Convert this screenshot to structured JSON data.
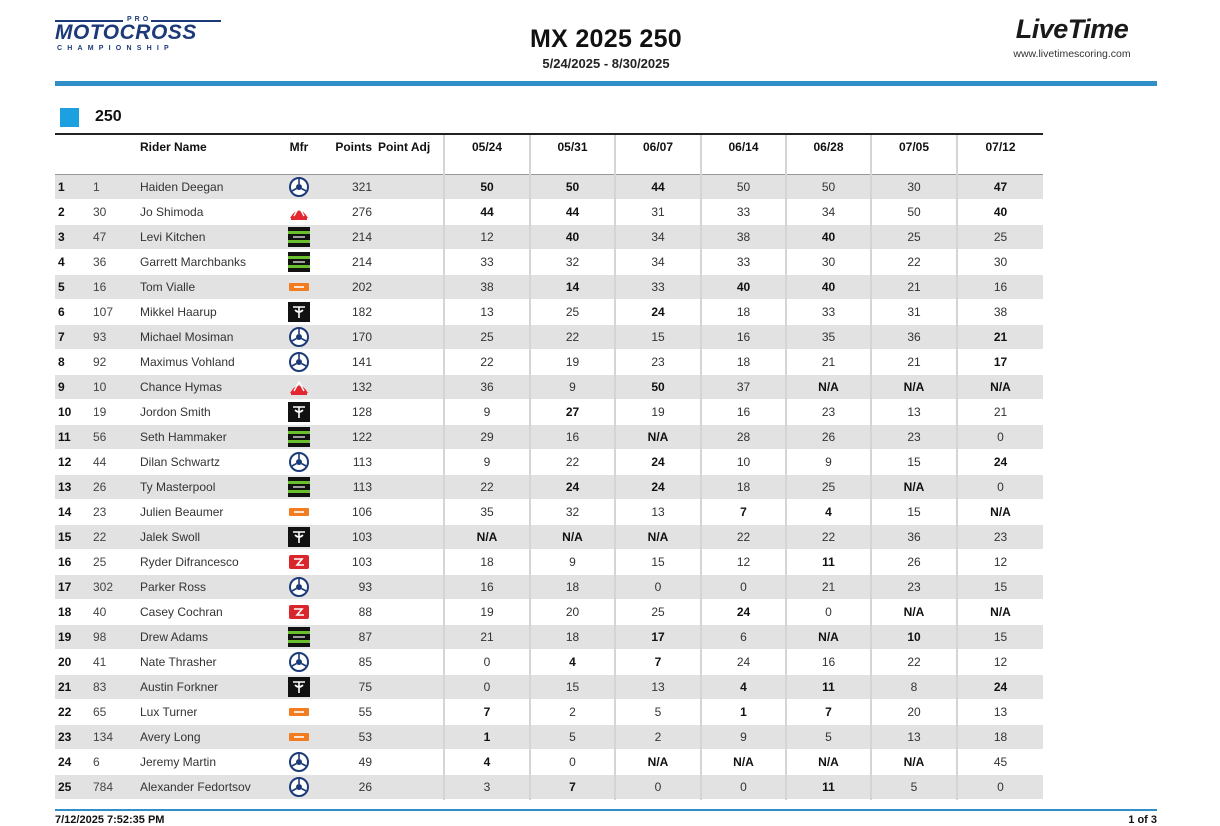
{
  "header": {
    "logo_top": "PRO",
    "logo_main": "MOTOCROSS",
    "logo_bottom": "CHAMPIONSHIP",
    "title": "MX 2025 250",
    "dates": "5/24/2025 - 8/30/2025",
    "livetime_logo": "LiveTime",
    "livetime_url": "www.livetimescoring.com"
  },
  "colors": {
    "accent_blue": "#2f8fc6",
    "class_square": "#1ca0e0",
    "navy": "#1d3a78",
    "row_shade": "#e2e2e2"
  },
  "class_label": "250",
  "columns": {
    "rider_name": "Rider Name",
    "mfr": "Mfr",
    "points": "Points",
    "point_adj": "Point Adj",
    "rounds": [
      "05/24",
      "05/31",
      "06/07",
      "06/14",
      "06/28",
      "07/05",
      "07/12"
    ]
  },
  "rows": [
    {
      "pos": "1",
      "num": "1",
      "name": "Haiden Deegan",
      "mfr": "yamaha-icon",
      "points": "321",
      "rounds": [
        "50",
        "50",
        "44",
        "50",
        "50",
        "30",
        "47"
      ],
      "bold": [
        true,
        true,
        true,
        false,
        false,
        false,
        true
      ]
    },
    {
      "pos": "2",
      "num": "30",
      "name": "Jo Shimoda",
      "mfr": "honda-icon",
      "points": "276",
      "rounds": [
        "44",
        "44",
        "31",
        "33",
        "34",
        "50",
        "40"
      ],
      "bold": [
        true,
        true,
        false,
        false,
        false,
        false,
        true
      ]
    },
    {
      "pos": "3",
      "num": "47",
      "name": "Levi Kitchen",
      "mfr": "kawasaki-icon",
      "points": "214",
      "rounds": [
        "12",
        "40",
        "34",
        "38",
        "40",
        "25",
        "25"
      ],
      "bold": [
        false,
        true,
        false,
        false,
        true,
        false,
        false
      ]
    },
    {
      "pos": "4",
      "num": "36",
      "name": "Garrett Marchbanks",
      "mfr": "kawasaki-icon",
      "points": "214",
      "rounds": [
        "33",
        "32",
        "34",
        "33",
        "30",
        "22",
        "30"
      ],
      "bold": [
        false,
        false,
        false,
        false,
        false,
        false,
        false
      ]
    },
    {
      "pos": "5",
      "num": "16",
      "name": "Tom Vialle",
      "mfr": "ktm-icon",
      "points": "202",
      "rounds": [
        "38",
        "14",
        "33",
        "40",
        "40",
        "21",
        "16"
      ],
      "bold": [
        false,
        true,
        false,
        true,
        true,
        false,
        false
      ]
    },
    {
      "pos": "6",
      "num": "107",
      "name": "Mikkel Haarup",
      "mfr": "triumph-icon",
      "points": "182",
      "rounds": [
        "13",
        "25",
        "24",
        "18",
        "33",
        "31",
        "38"
      ],
      "bold": [
        false,
        false,
        true,
        false,
        false,
        false,
        false
      ]
    },
    {
      "pos": "7",
      "num": "93",
      "name": "Michael Mosiman",
      "mfr": "yamaha-icon",
      "points": "170",
      "rounds": [
        "25",
        "22",
        "15",
        "16",
        "35",
        "36",
        "21"
      ],
      "bold": [
        false,
        false,
        false,
        false,
        false,
        false,
        true
      ]
    },
    {
      "pos": "8",
      "num": "92",
      "name": "Maximus Vohland",
      "mfr": "yamaha-icon",
      "points": "141",
      "rounds": [
        "22",
        "19",
        "23",
        "18",
        "21",
        "21",
        "17"
      ],
      "bold": [
        false,
        false,
        false,
        false,
        false,
        false,
        true
      ]
    },
    {
      "pos": "9",
      "num": "10",
      "name": "Chance Hymas",
      "mfr": "honda-icon",
      "points": "132",
      "rounds": [
        "36",
        "9",
        "50",
        "37",
        "N/A",
        "N/A",
        "N/A"
      ],
      "bold": [
        false,
        false,
        true,
        false,
        true,
        true,
        true
      ]
    },
    {
      "pos": "10",
      "num": "19",
      "name": "Jordon Smith",
      "mfr": "triumph-icon",
      "points": "128",
      "rounds": [
        "9",
        "27",
        "19",
        "16",
        "23",
        "13",
        "21"
      ],
      "bold": [
        false,
        true,
        false,
        false,
        false,
        false,
        false
      ]
    },
    {
      "pos": "11",
      "num": "56",
      "name": "Seth Hammaker",
      "mfr": "kawasaki-icon",
      "points": "122",
      "rounds": [
        "29",
        "16",
        "N/A",
        "28",
        "26",
        "23",
        "0"
      ],
      "bold": [
        false,
        false,
        true,
        false,
        false,
        false,
        false
      ]
    },
    {
      "pos": "12",
      "num": "44",
      "name": "Dilan Schwartz",
      "mfr": "yamaha-icon",
      "points": "113",
      "rounds": [
        "9",
        "22",
        "24",
        "10",
        "9",
        "15",
        "24"
      ],
      "bold": [
        false,
        false,
        true,
        false,
        false,
        false,
        true
      ]
    },
    {
      "pos": "13",
      "num": "26",
      "name": "Ty Masterpool",
      "mfr": "kawasaki-icon",
      "points": "113",
      "rounds": [
        "22",
        "24",
        "24",
        "18",
        "25",
        "N/A",
        "0"
      ],
      "bold": [
        false,
        true,
        true,
        false,
        false,
        true,
        false
      ]
    },
    {
      "pos": "14",
      "num": "23",
      "name": "Julien Beaumer",
      "mfr": "ktm-icon",
      "points": "106",
      "rounds": [
        "35",
        "32",
        "13",
        "7",
        "4",
        "15",
        "N/A"
      ],
      "bold": [
        false,
        false,
        false,
        true,
        true,
        false,
        true
      ]
    },
    {
      "pos": "15",
      "num": "22",
      "name": "Jalek Swoll",
      "mfr": "triumph-icon",
      "points": "103",
      "rounds": [
        "N/A",
        "N/A",
        "N/A",
        "22",
        "22",
        "36",
        "23"
      ],
      "bold": [
        true,
        true,
        true,
        false,
        false,
        false,
        false
      ]
    },
    {
      "pos": "16",
      "num": "25",
      "name": "Ryder Difrancesco",
      "mfr": "gasgas-icon",
      "points": "103",
      "rounds": [
        "18",
        "9",
        "15",
        "12",
        "11",
        "26",
        "12"
      ],
      "bold": [
        false,
        false,
        false,
        false,
        true,
        false,
        false
      ]
    },
    {
      "pos": "17",
      "num": "302",
      "name": "Parker Ross",
      "mfr": "yamaha-icon",
      "points": "93",
      "rounds": [
        "16",
        "18",
        "0",
        "0",
        "21",
        "23",
        "15"
      ],
      "bold": [
        false,
        false,
        false,
        false,
        false,
        false,
        false
      ]
    },
    {
      "pos": "18",
      "num": "40",
      "name": "Casey Cochran",
      "mfr": "gasgas-icon",
      "points": "88",
      "rounds": [
        "19",
        "20",
        "25",
        "24",
        "0",
        "N/A",
        "N/A"
      ],
      "bold": [
        false,
        false,
        false,
        true,
        false,
        true,
        true
      ]
    },
    {
      "pos": "19",
      "num": "98",
      "name": "Drew Adams",
      "mfr": "kawasaki-icon",
      "points": "87",
      "rounds": [
        "21",
        "18",
        "17",
        "6",
        "N/A",
        "10",
        "15"
      ],
      "bold": [
        false,
        false,
        true,
        false,
        true,
        true,
        false
      ]
    },
    {
      "pos": "20",
      "num": "41",
      "name": "Nate Thrasher",
      "mfr": "yamaha-icon",
      "points": "85",
      "rounds": [
        "0",
        "4",
        "7",
        "24",
        "16",
        "22",
        "12"
      ],
      "bold": [
        false,
        true,
        true,
        false,
        false,
        false,
        false
      ]
    },
    {
      "pos": "21",
      "num": "83",
      "name": "Austin Forkner",
      "mfr": "triumph-icon",
      "points": "75",
      "rounds": [
        "0",
        "15",
        "13",
        "4",
        "11",
        "8",
        "24"
      ],
      "bold": [
        false,
        false,
        false,
        true,
        true,
        false,
        true
      ]
    },
    {
      "pos": "22",
      "num": "65",
      "name": "Lux Turner",
      "mfr": "ktm-icon",
      "points": "55",
      "rounds": [
        "7",
        "2",
        "5",
        "1",
        "7",
        "20",
        "13"
      ],
      "bold": [
        true,
        false,
        false,
        true,
        true,
        false,
        false
      ]
    },
    {
      "pos": "23",
      "num": "134",
      "name": "Avery Long",
      "mfr": "ktm-icon",
      "points": "53",
      "rounds": [
        "1",
        "5",
        "2",
        "9",
        "5",
        "13",
        "18"
      ],
      "bold": [
        true,
        false,
        false,
        false,
        false,
        false,
        false
      ]
    },
    {
      "pos": "24",
      "num": "6",
      "name": "Jeremy Martin",
      "mfr": "yamaha-icon",
      "points": "49",
      "rounds": [
        "4",
        "0",
        "N/A",
        "N/A",
        "N/A",
        "N/A",
        "45"
      ],
      "bold": [
        true,
        false,
        true,
        true,
        true,
        true,
        false
      ]
    },
    {
      "pos": "25",
      "num": "784",
      "name": "Alexander Fedortsov",
      "mfr": "yamaha-icon",
      "points": "26",
      "rounds": [
        "3",
        "7",
        "0",
        "0",
        "11",
        "5",
        "0"
      ],
      "bold": [
        false,
        true,
        false,
        false,
        true,
        false,
        false
      ]
    }
  ],
  "footer": {
    "timestamp": "7/12/2025 7:52:35 PM",
    "page": "1 of 3"
  }
}
